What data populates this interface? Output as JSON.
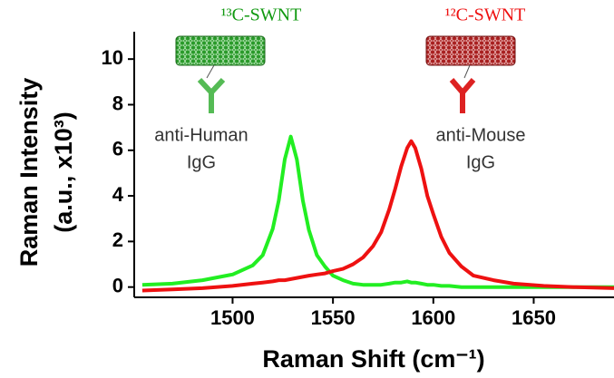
{
  "chart_data": {
    "type": "line",
    "x_label": "Raman Shift (cm⁻¹)",
    "y_label": [
      "Raman Intensity",
      "(a.u., x10³)"
    ],
    "annotations": [
      {
        "text": "¹³C-SWNT",
        "color": "#119911"
      },
      {
        "text": "¹²C-SWNT",
        "color": "#ee1111"
      },
      {
        "text": [
          "anti-Human",
          "IgG"
        ],
        "color": "#333333"
      },
      {
        "text": [
          "anti-Mouse",
          "IgG"
        ],
        "color": "#333333"
      }
    ],
    "x": [
      1455,
      1470,
      1485,
      1500,
      1510,
      1515,
      1520,
      1523,
      1526,
      1529,
      1532,
      1535,
      1538,
      1542,
      1546,
      1550,
      1555,
      1560,
      1565,
      1570,
      1574,
      1578,
      1581,
      1584,
      1587,
      1589,
      1591,
      1594,
      1597,
      1600,
      1604,
      1608,
      1614,
      1620,
      1630,
      1640,
      1655,
      1670,
      1690
    ],
    "series": [
      {
        "name": "13C-SWNT",
        "color": "#22ee22",
        "values": [
          0.1,
          0.15,
          0.3,
          0.55,
          0.95,
          1.4,
          2.55,
          3.8,
          5.6,
          6.6,
          5.6,
          3.8,
          2.5,
          1.4,
          0.9,
          0.5,
          0.3,
          0.15,
          0.1,
          0.1,
          0.1,
          0.15,
          0.2,
          0.2,
          0.25,
          0.2,
          0.2,
          0.15,
          0.1,
          0.1,
          0.05,
          0.05,
          0,
          0,
          0,
          0,
          0,
          0,
          0
        ]
      },
      {
        "name": "12C-SWNT",
        "color": "#ee1111",
        "values": [
          -0.15,
          -0.1,
          -0.05,
          0.05,
          0.15,
          0.2,
          0.25,
          0.3,
          0.3,
          0.35,
          0.4,
          0.45,
          0.5,
          0.55,
          0.6,
          0.7,
          0.8,
          1.0,
          1.3,
          1.8,
          2.4,
          3.4,
          4.3,
          5.3,
          6.1,
          6.4,
          6.1,
          5.2,
          4.0,
          3.2,
          2.2,
          1.5,
          0.9,
          0.5,
          0.3,
          0.15,
          0.05,
          0,
          -0.05
        ]
      }
    ],
    "xlim": [
      1451,
      1690
    ],
    "ylim": [
      -0.45,
      11.2
    ],
    "xticks": [
      1500,
      1550,
      1600,
      1650
    ],
    "yticks": [
      0,
      2,
      4,
      6,
      8,
      10
    ]
  }
}
